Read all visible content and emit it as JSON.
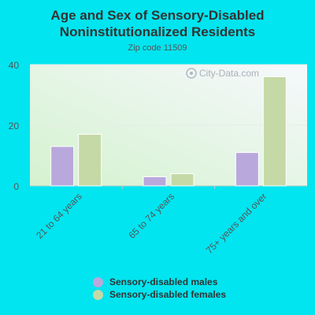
{
  "chart_data": {
    "type": "bar",
    "title": "Age and Sex of Sensory-Disabled Noninstitutionalized Residents",
    "subtitle": "Zip code 11509",
    "categories": [
      "21 to 64 years",
      "65 to 74 years",
      "75+ years and over"
    ],
    "series": [
      {
        "name": "Sensory-disabled males",
        "color": "#b9a8db",
        "values": [
          13,
          3,
          11
        ]
      },
      {
        "name": "Sensory-disabled females",
        "color": "#c5d9a6",
        "values": [
          17,
          4,
          36
        ]
      }
    ],
    "ylim": [
      0,
      40
    ],
    "yticks": [
      0,
      20,
      40
    ],
    "grid": true,
    "legend": "bottom",
    "watermark": "City-Data.com"
  }
}
